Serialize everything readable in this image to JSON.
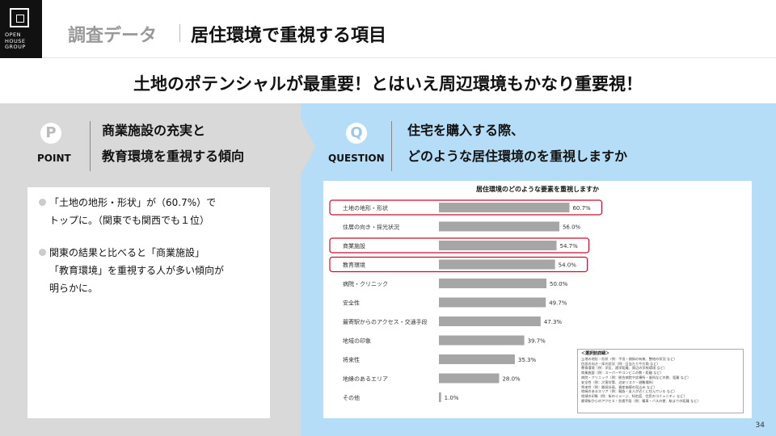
{
  "logo": {
    "line1": "OPEN",
    "line2": "HOUSE",
    "line3": "GROUP"
  },
  "header": {
    "prefix": "調査データ",
    "title": "居住環境で重視する項目"
  },
  "headline": "土地のポテンシャルが最重要！とはいえ周辺環境もかなり重要視！",
  "point": {
    "badge": "P",
    "label": "POINT",
    "title_line1": "商業施設の充実と",
    "title_line2": "教育環境を重視する傾向"
  },
  "question": {
    "badge": "Q",
    "label": "QUESTION",
    "title_line1": "住宅を購入する際、",
    "title_line2": "どのような居住環境のを重視しますか"
  },
  "bullets": {
    "b1_line1": "「土地の地形・形状」が（60.7%）で",
    "b1_line2": "トップに。（関東でも関西でも１位）",
    "b2_line1": "関東の結果と比べると「商業施設」",
    "b2_line2": "「教育環境」を重視する人が多い傾向が",
    "b2_line3": "明らかに。"
  },
  "chart_data": {
    "type": "bar",
    "orientation": "horizontal",
    "title": "居住環境のどのような要素を重視しますか",
    "categories": [
      "土地の地形・形状",
      "住居の向き・採光状況",
      "商業施設",
      "教育環境",
      "病院・クリニック",
      "安全性",
      "最寄駅からのアクセス・交通手段",
      "地域の印象",
      "将来性",
      "地縁のあるエリア",
      "その他"
    ],
    "values": [
      60.7,
      56.0,
      54.7,
      54.0,
      50.0,
      49.7,
      47.3,
      39.7,
      35.3,
      28.0,
      1.0
    ],
    "value_labels": [
      "60.7%",
      "56.0%",
      "54.7%",
      "54.0%",
      "50.0%",
      "49.7%",
      "47.3%",
      "39.7%",
      "35.3%",
      "28.0%",
      "1.0%"
    ],
    "highlighted": [
      "土地の地形・形状",
      "商業施設",
      "教育環境"
    ],
    "xlim": [
      0,
      100
    ],
    "bar_color": "#a6a6a6",
    "highlight_color": "#c8102e",
    "grid": false
  },
  "notes": {
    "title": "＜選択肢詳細＞",
    "lines": [
      "土地の地形・形状（例：平坦・傾斜の有無、整地の状況 など）",
      "住居の向き・採光状況（例：日当たりや方角 など）",
      "教育環境（例：学区、通学距離、周辺の学校環境 など）",
      "商業施設（例：スーパーやコンビニの数・距離 など）",
      "病院・クリニック（例：総合病院や診療所・歯科などの数、距離 など）",
      "安全性（例：災害対策、治安リスク・避難場所）",
      "将来性（例：開発計画、資産価値の見込み など）",
      "地縁のあるエリア（例：親族・友人が近くに住んでいる など）",
      "地域の印象（例：街のイメージ、知名度、住民のコミュニティ など）",
      "最寄駅からのアクセス・交通手段（例：電車・バスの便、駅までの距離 など）"
    ]
  },
  "page_number": "34"
}
